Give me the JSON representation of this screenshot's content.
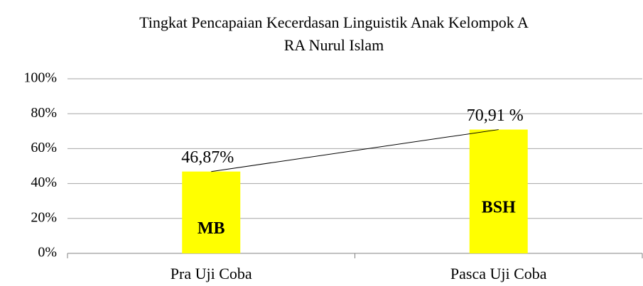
{
  "chart_data": {
    "type": "bar",
    "title": [
      "Tingkat Pencapaian Kecerdasan Linguistik Anak Kelompok A",
      "RA Nurul Islam"
    ],
    "categories": [
      "Pra Uji Coba",
      "Pasca Uji Coba"
    ],
    "values": [
      46.87,
      70.91
    ],
    "value_labels": [
      "46,87%",
      "70,91 %"
    ],
    "bar_labels": [
      "MB",
      "BSH"
    ],
    "color": "#ffff00",
    "line_color": "#000000",
    "ylim": [
      0,
      100
    ],
    "yticks": [
      {
        "value": 0,
        "label": "0%"
      },
      {
        "value": 20,
        "label": "20%"
      },
      {
        "value": 40,
        "label": "40%"
      },
      {
        "value": 60,
        "label": "60%"
      },
      {
        "value": 80,
        "label": "80%"
      },
      {
        "value": 100,
        "label": "100%"
      }
    ],
    "grid": true
  }
}
